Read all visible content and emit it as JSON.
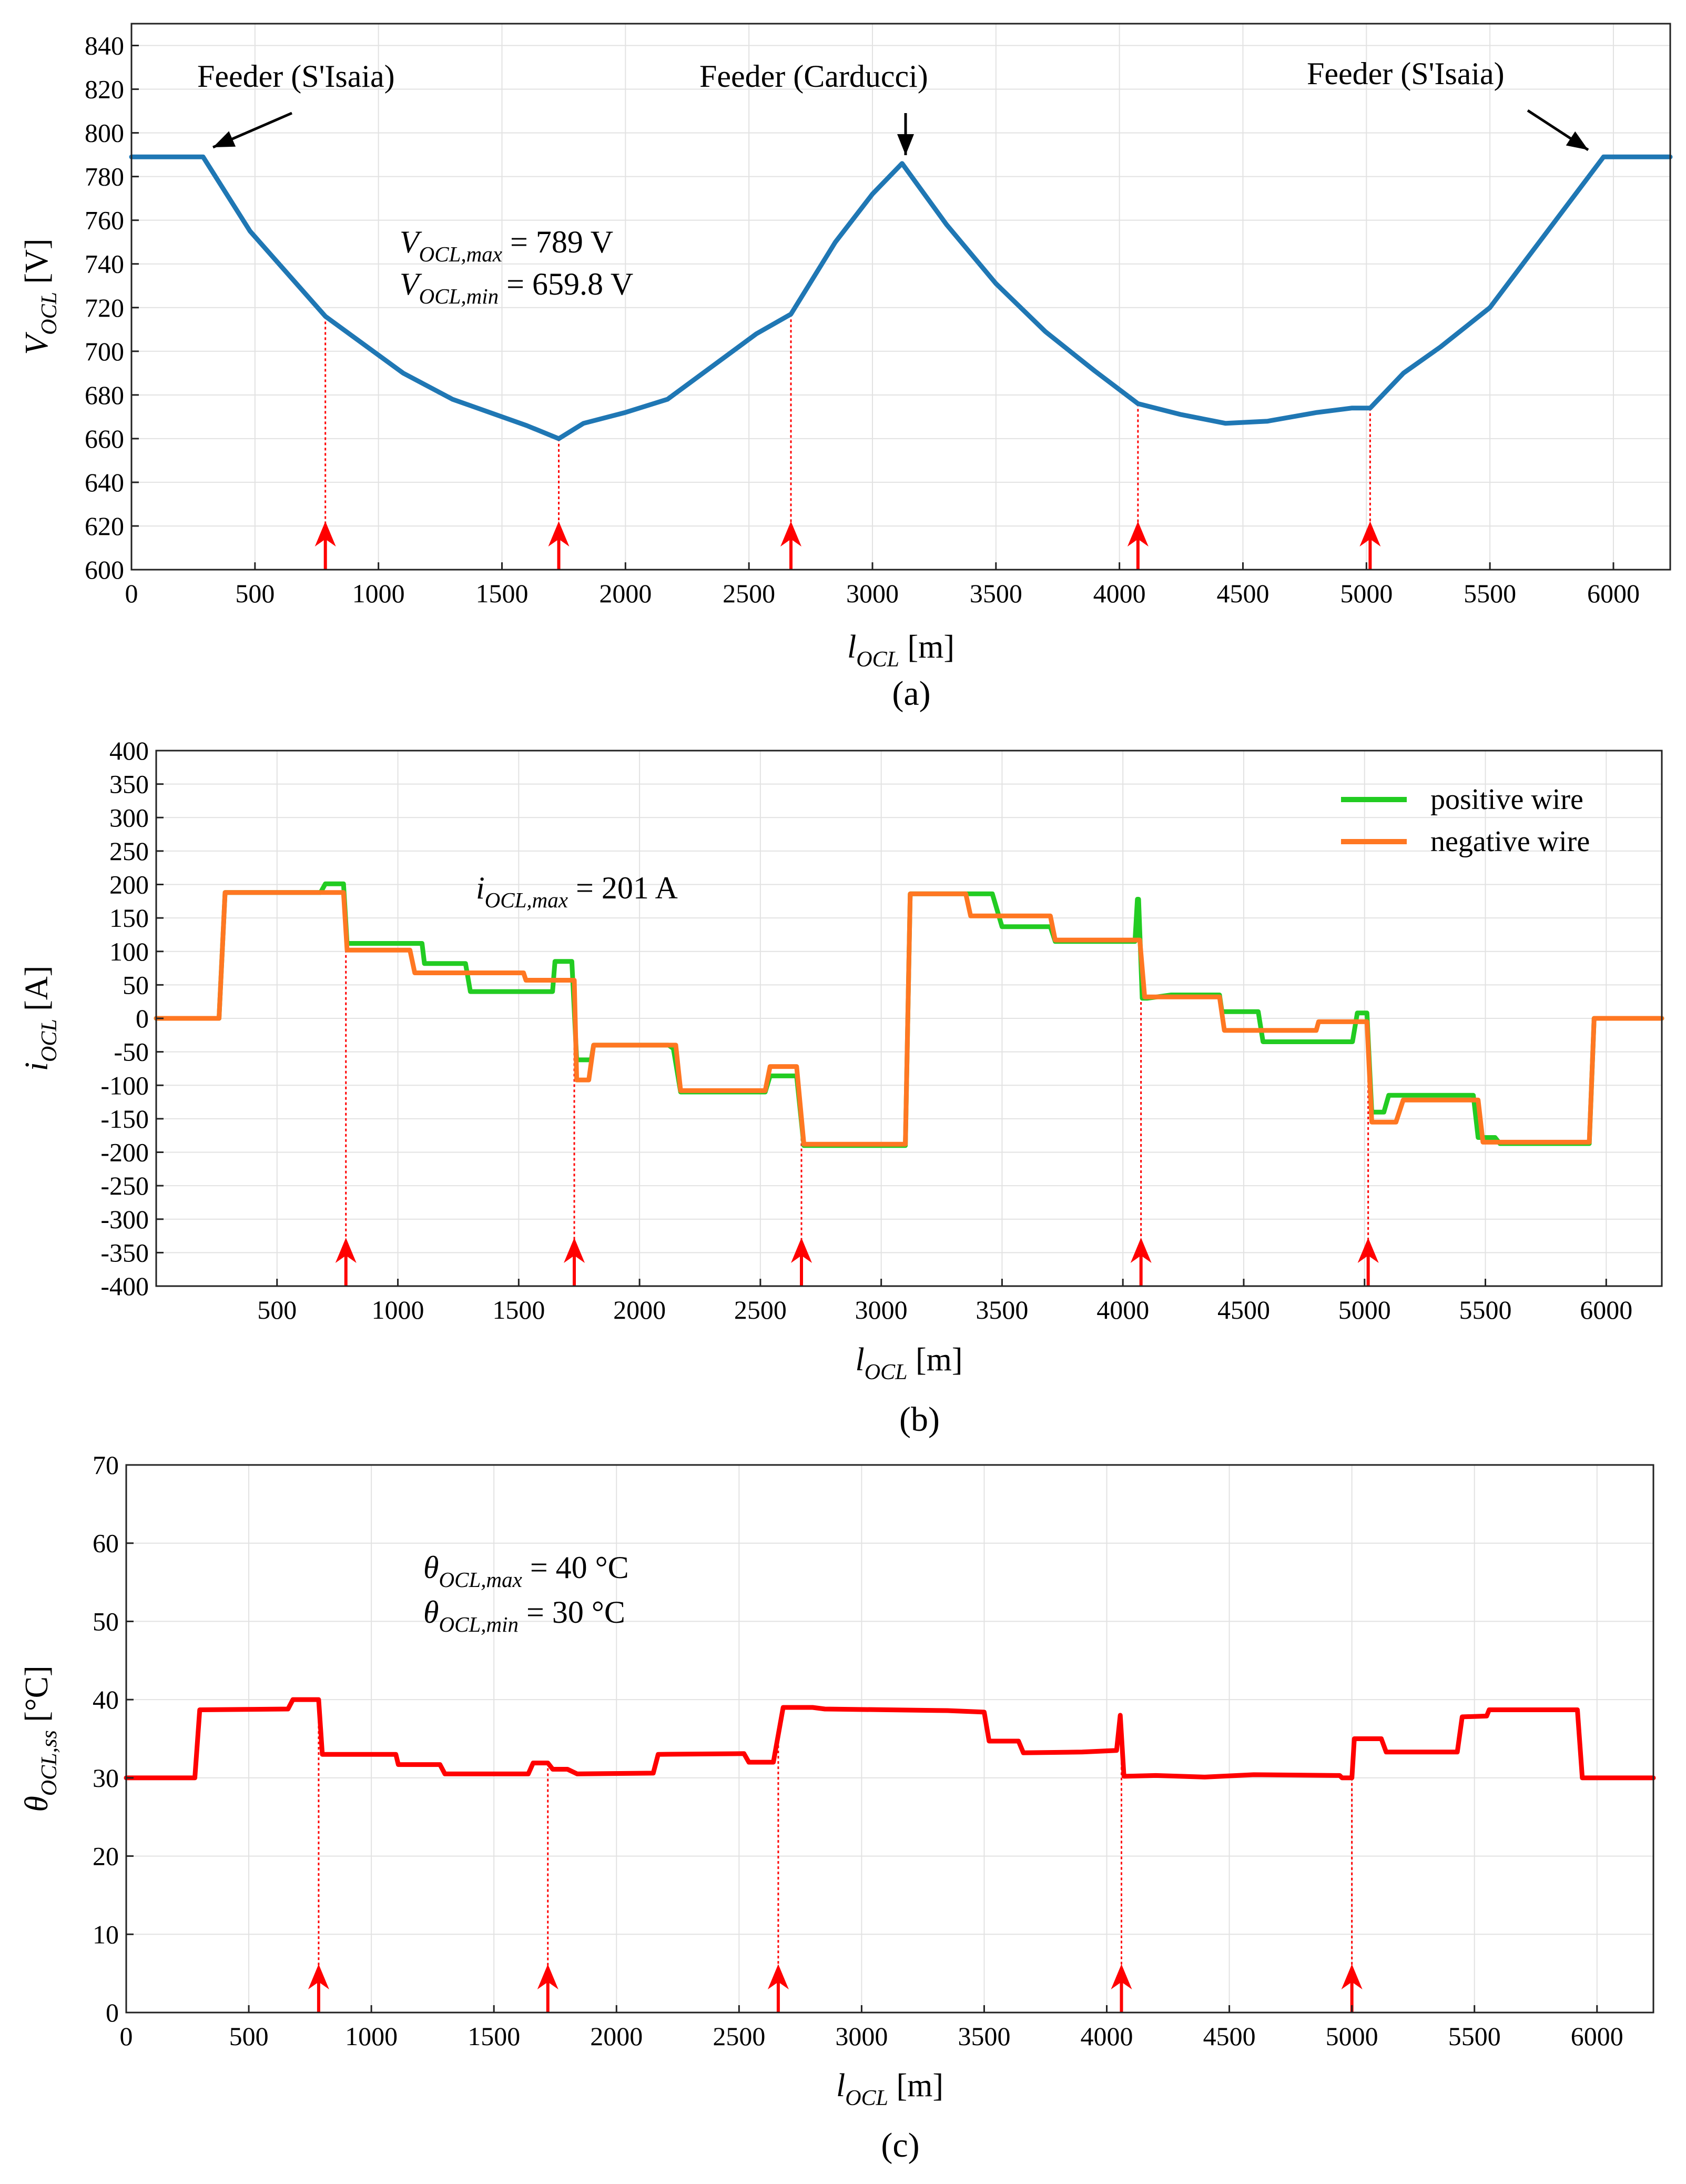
{
  "chart_data": [
    {
      "type": "line",
      "panel_label": "a",
      "panel_label_text": "(a)",
      "xlabel": "l_OCL [m]",
      "ylabel": "V_OCL [V]",
      "xlim": [
        0,
        6230
      ],
      "ylim": [
        600,
        850
      ],
      "xticks": [
        0,
        500,
        1000,
        1500,
        2000,
        2500,
        3000,
        3500,
        4000,
        4500,
        5000,
        5500,
        6000
      ],
      "yticks": [
        600,
        620,
        640,
        660,
        680,
        700,
        720,
        740,
        760,
        780,
        800,
        820,
        840
      ],
      "grid": true,
      "colors": {
        "series": "#1f77b4",
        "marker": "#ff0000"
      },
      "annotations": {
        "feeder_left": "Feeder (S'Isaia)",
        "feeder_mid": "Feeder (Carducci)",
        "feeder_right": "Feeder (S'Isaia)",
        "vmax": "V_OCL,max = 789 V",
        "vmin": "V_OCL,min = 659.8 V"
      },
      "markers_x": [
        785,
        1730,
        2670,
        4075,
        5015
      ],
      "series": [
        {
          "color": "#1f77b4",
          "x": [
            0,
            290,
            480,
            785,
            1100,
            1300,
            1600,
            1730,
            1830,
            2000,
            2170,
            2350,
            2530,
            2670,
            2850,
            3000,
            3120,
            3300,
            3500,
            3700,
            3900,
            4075,
            4250,
            4430,
            4600,
            4800,
            4940,
            5015,
            5150,
            5300,
            5500,
            5700,
            5960,
            6230
          ],
          "y": [
            789,
            789,
            755,
            716,
            690,
            678,
            666,
            660,
            667,
            672,
            678,
            693,
            708,
            717,
            750,
            772,
            786,
            758,
            731,
            709,
            691,
            676,
            671,
            667,
            668,
            672,
            674,
            674,
            690,
            702,
            720,
            750,
            789,
            789
          ]
        }
      ]
    },
    {
      "type": "line",
      "panel_label": "b",
      "panel_label_text": "(b)",
      "xlabel": "l_OCL [m]",
      "ylabel": "i_OCL [A]",
      "xlim": [
        0,
        6230
      ],
      "ylim": [
        -400,
        400
      ],
      "xticks": [
        500,
        1000,
        1500,
        2000,
        2500,
        3000,
        3500,
        4000,
        4500,
        5000,
        5500,
        6000
      ],
      "yticks": [
        400,
        350,
        300,
        250,
        200,
        150,
        100,
        50,
        0,
        -50,
        -100,
        -150,
        -200,
        -250,
        -300,
        -350,
        -400
      ],
      "grid": true,
      "legend_position": "top-right",
      "colors": {
        "positive": "#22cc22",
        "negative": "#ff7722",
        "marker": "#ff0000"
      },
      "annotations": {
        "imax": "i_OCL,max = 201 A"
      },
      "markers_x": [
        785,
        1730,
        2670,
        4075,
        5015
      ],
      "series": [
        {
          "name": "positive wire",
          "color": "#22cc22",
          "x": [
            0,
            260,
            285,
            680,
            700,
            775,
            790,
            1000,
            1100,
            1110,
            1280,
            1300,
            1640,
            1650,
            1720,
            1740,
            1800,
            1810,
            2120,
            2140,
            2170,
            2520,
            2540,
            2650,
            2680,
            3100,
            3120,
            3460,
            3500,
            3700,
            3720,
            4050,
            4060,
            4065,
            4080,
            4100,
            4200,
            4400,
            4410,
            4560,
            4580,
            4950,
            4970,
            5010,
            5030,
            5080,
            5100,
            5450,
            5470,
            5540,
            5560,
            5930,
            5950,
            6230
          ],
          "y": [
            0,
            0,
            188,
            188,
            201,
            201,
            112,
            112,
            112,
            82,
            82,
            40,
            40,
            85,
            85,
            -62,
            -62,
            -40,
            -40,
            -45,
            -110,
            -110,
            -86,
            -86,
            -190,
            -190,
            186,
            186,
            137,
            137,
            115,
            115,
            178,
            178,
            30,
            30,
            35,
            35,
            10,
            10,
            -35,
            -35,
            8,
            8,
            -140,
            -140,
            -115,
            -115,
            -178,
            -178,
            -187,
            -187,
            0,
            0
          ]
        },
        {
          "name": "negative wire",
          "color": "#ff7722",
          "x": [
            0,
            260,
            285,
            775,
            790,
            1050,
            1070,
            1300,
            1310,
            1520,
            1530,
            1730,
            1740,
            1790,
            1810,
            2150,
            2170,
            2520,
            2540,
            2650,
            2680,
            3100,
            3120,
            3350,
            3370,
            3700,
            3720,
            4070,
            4090,
            4400,
            4420,
            4800,
            4810,
            5010,
            5030,
            5130,
            5160,
            5470,
            5490,
            5930,
            5950,
            6230
          ],
          "y": [
            0,
            0,
            188,
            188,
            102,
            102,
            68,
            68,
            68,
            68,
            57,
            57,
            -92,
            -92,
            -40,
            -40,
            -108,
            -108,
            -72,
            -72,
            -188,
            -188,
            186,
            186,
            153,
            153,
            117,
            117,
            32,
            32,
            -18,
            -18,
            -5,
            -5,
            -155,
            -155,
            -122,
            -122,
            -185,
            -185,
            0,
            0
          ]
        }
      ]
    },
    {
      "type": "line",
      "panel_label": "c",
      "panel_label_text": "(c)",
      "xlabel": "l_OCL [m]",
      "ylabel": "θ_OCL,ss [°C]",
      "xlim": [
        0,
        6230
      ],
      "ylim": [
        0,
        70
      ],
      "xticks": [
        0,
        500,
        1000,
        1500,
        2000,
        2500,
        3000,
        3500,
        4000,
        4500,
        5000,
        5500,
        6000
      ],
      "yticks": [
        0,
        10,
        20,
        30,
        40,
        50,
        60,
        70
      ],
      "grid": true,
      "colors": {
        "series": "#ff0000",
        "marker": "#ff0000"
      },
      "annotations": {
        "tmax": "θ_OCL,max = 40 °C",
        "tmin": "θ_OCL,min = 30 °C"
      },
      "markers_x": [
        785,
        1720,
        2660,
        4060,
        5000
      ],
      "series": [
        {
          "color": "#ff0000",
          "x": [
            0,
            280,
            300,
            660,
            680,
            785,
            800,
            1000,
            1100,
            1110,
            1280,
            1300,
            1640,
            1660,
            1720,
            1740,
            1800,
            1840,
            2150,
            2170,
            2520,
            2540,
            2640,
            2680,
            2800,
            2850,
            3350,
            3500,
            3520,
            3640,
            3660,
            3900,
            4040,
            4055,
            4070,
            4200,
            4400,
            4600,
            4950,
            4960,
            5000,
            5010,
            5120,
            5140,
            5430,
            5450,
            5550,
            5560,
            5920,
            5940,
            6230
          ],
          "y": [
            30,
            30,
            38.7,
            38.8,
            40,
            40,
            33,
            33,
            33,
            31.7,
            31.7,
            30.5,
            30.5,
            31.9,
            31.9,
            31.1,
            31.1,
            30.5,
            30.6,
            33,
            33.1,
            32,
            32,
            39,
            39,
            38.8,
            38.6,
            38.4,
            34.7,
            34.7,
            33.2,
            33.3,
            33.5,
            38,
            30.2,
            30.3,
            30.1,
            30.4,
            30.3,
            30,
            30,
            35,
            35,
            33.3,
            33.3,
            37.8,
            37.9,
            38.7,
            38.7,
            30,
            30
          ]
        }
      ]
    }
  ]
}
